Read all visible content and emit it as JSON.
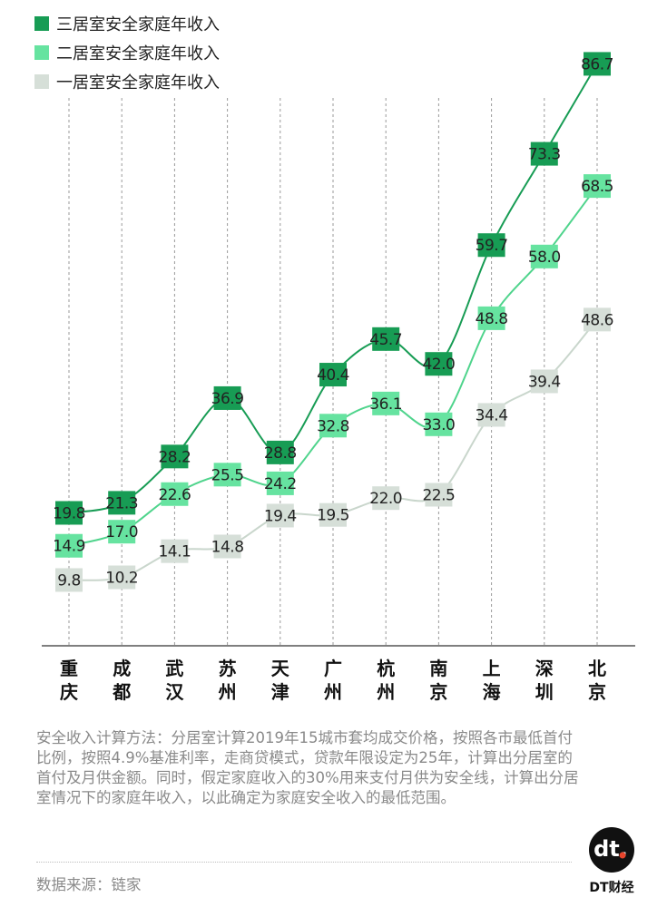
{
  "chart_data": {
    "type": "line",
    "categories": [
      "重庆",
      "成都",
      "武汉",
      "苏州",
      "天津",
      "广州",
      "杭州",
      "南京",
      "上海",
      "深圳",
      "北京"
    ],
    "series": [
      {
        "name": "三居室安全家庭年收入",
        "color": "#179c54",
        "values": [
          19.8,
          21.3,
          28.2,
          36.9,
          28.8,
          40.4,
          45.7,
          42.0,
          59.7,
          73.3,
          86.7
        ],
        "labels": [
          "19.8",
          "21.3",
          "28.2",
          "36.9",
          "28.8",
          "40.4",
          "45.7",
          "42.0",
          "59.7",
          "73.3",
          "86.7"
        ]
      },
      {
        "name": "二居室安全家庭年收入",
        "color": "#66e3a0",
        "values": [
          14.9,
          17.0,
          22.6,
          25.5,
          24.2,
          32.8,
          36.1,
          33.0,
          48.8,
          58.0,
          68.5
        ],
        "labels": [
          "14.9",
          "17.0",
          "22.6",
          "25.5",
          "24.2",
          "32.8",
          "36.1",
          "33.0",
          "48.8",
          "58.0",
          "68.5"
        ]
      },
      {
        "name": "一居室安全家庭年收入",
        "color": "#d6dfd8",
        "values": [
          9.8,
          10.2,
          14.1,
          14.8,
          19.4,
          19.5,
          22.0,
          22.5,
          34.4,
          39.4,
          48.6
        ],
        "labels": [
          "9.8",
          "10.2",
          "14.1",
          "14.8",
          "19.4",
          "19.5",
          "22.0",
          "22.5",
          "34.4",
          "39.4",
          "48.6"
        ]
      }
    ],
    "ylim": [
      0,
      92
    ],
    "grid": "vertical-dashed",
    "legend": "top-left"
  },
  "footnote": "安全收入计算方法：分居室计算2019年15城市套均成交价格，按照各市最低首付比例，按照4.9%基准利率，走商贷模式，贷款年限设定为25年，计算出分居室的首付及月供金额。同时，假定家庭收入的30%用来支付月供为安全线，计算出分居室情况下的家庭年收入，以此确定为家庭安全收入的最低范围。",
  "source": "数据来源：链家",
  "logo": {
    "mark": "dt.",
    "name": "DT财经"
  }
}
